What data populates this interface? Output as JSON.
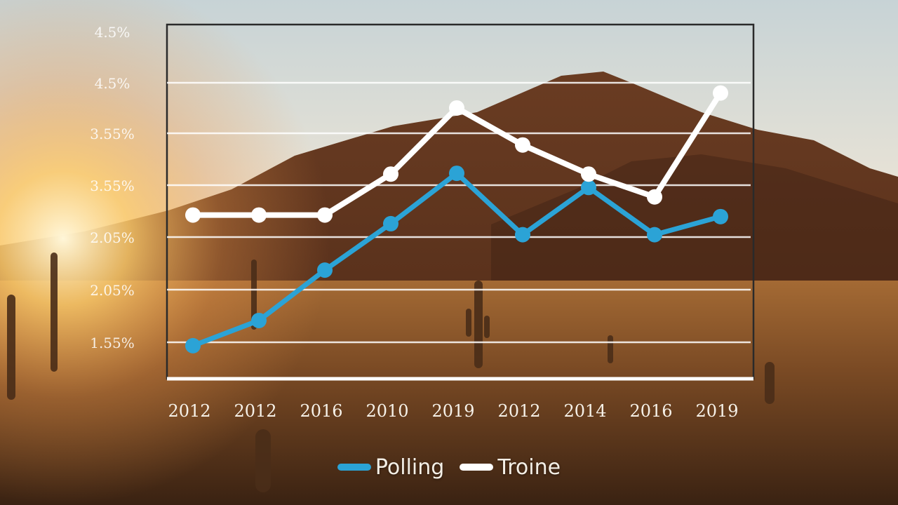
{
  "chart_data": {
    "type": "line",
    "categories": [
      "2012",
      "2012",
      "2016",
      "2010",
      "2019",
      "2012",
      "2014",
      "2016",
      "2019"
    ],
    "y_tick_labels": [
      "1.55%",
      "2.05%",
      "2.05%",
      "3.55%",
      "3.55%",
      "4.5%",
      "4.5%"
    ],
    "series": [
      {
        "name": "Polling",
        "color": "#2ba3d6",
        "values": [
          1.72,
          2.04,
          2.68,
          3.27,
          3.91,
          3.13,
          3.73,
          3.13,
          3.36
        ]
      },
      {
        "name": "Troine",
        "color": "#ffffff",
        "values": [
          3.38,
          3.38,
          3.38,
          3.9,
          4.74,
          4.27,
          3.9,
          3.61,
          4.93
        ]
      }
    ],
    "ylim": [
      1.3,
      5.8
    ],
    "grid": true,
    "legend": "bottom-center",
    "title": "",
    "xlabel": "",
    "ylabel": ""
  }
}
